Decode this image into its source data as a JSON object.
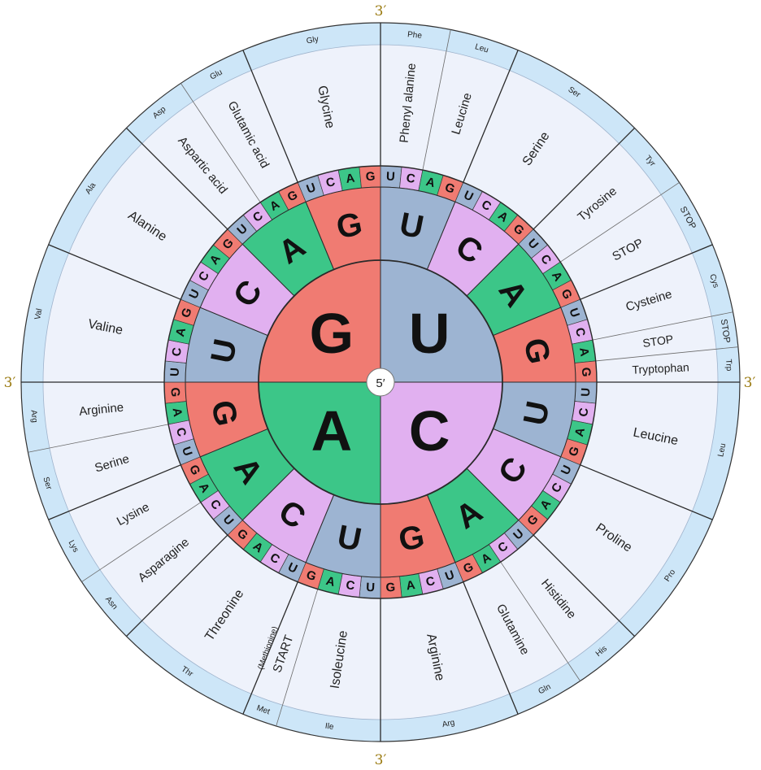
{
  "center_label": "5′",
  "end_labels": [
    "3′",
    "3′",
    "3′",
    "3′"
  ],
  "colors": {
    "U": "#9db4d2",
    "C": "#e1b0f0",
    "A": "#3cc688",
    "G": "#f07b72",
    "outer_band": "#cde6f8",
    "name_region": "#eef2fb",
    "stop_text": "#12988e",
    "start_text": "#b0307a"
  },
  "first_base": [
    "U",
    "C",
    "A",
    "G"
  ],
  "second_base": [
    "U",
    "C",
    "A",
    "G",
    "U",
    "C",
    "A",
    "G",
    "U",
    "C",
    "A",
    "G",
    "U",
    "C",
    "A",
    "G"
  ],
  "third_base": [
    "U",
    "C",
    "A",
    "G",
    "U",
    "C",
    "A",
    "G",
    "U",
    "C",
    "A",
    "G",
    "U",
    "C",
    "A",
    "G",
    "U",
    "C",
    "A",
    "G",
    "U",
    "C",
    "A",
    "G",
    "U",
    "C",
    "A",
    "G",
    "U",
    "C",
    "A",
    "G",
    "U",
    "C",
    "A",
    "G",
    "U",
    "C",
    "A",
    "G",
    "U",
    "C",
    "A",
    "G",
    "U",
    "C",
    "A",
    "G",
    "U",
    "C",
    "A",
    "G",
    "U",
    "C",
    "A",
    "G",
    "U",
    "C",
    "A",
    "G",
    "U",
    "C",
    "A",
    "G"
  ],
  "amino_acids": [
    {
      "name": "Phenyl alanine",
      "abbr": "Phe"
    },
    {
      "name": "Leucine",
      "abbr": "Leu"
    },
    {
      "name": "Serine",
      "abbr": "Ser"
    },
    {
      "name": "Tyrosine",
      "abbr": "Tyr"
    },
    {
      "name": "STOP",
      "abbr": "STOP"
    },
    {
      "name": "Cysteine",
      "abbr": "Cys"
    },
    {
      "name": "STOP",
      "abbr": "STOP"
    },
    {
      "name": "Tryptophan",
      "abbr": "Trp"
    },
    {
      "name": "Leucine",
      "abbr": "Leu"
    },
    {
      "name": "Proline",
      "abbr": "Pro"
    },
    {
      "name": "Histidine",
      "abbr": "His"
    },
    {
      "name": "Glutamine",
      "abbr": "Gln"
    },
    {
      "name": "Arginine",
      "abbr": "Arg"
    },
    {
      "name": "Isoleucine",
      "abbr": "Ile"
    },
    {
      "name": "START",
      "sub": "(Methionine)",
      "abbr": "Met"
    },
    {
      "name": "Threonine",
      "abbr": "Thr"
    },
    {
      "name": "Asparagine",
      "abbr": "Asn"
    },
    {
      "name": "Lysine",
      "abbr": "Lys"
    },
    {
      "name": "Serine",
      "abbr": "Ser"
    },
    {
      "name": "Arginine",
      "abbr": "Arg"
    },
    {
      "name": "Valine",
      "abbr": "Val"
    },
    {
      "name": "Alanine",
      "abbr": "Ala"
    },
    {
      "name": "Aspartic acid",
      "abbr": "Asp"
    },
    {
      "name": "Glutamic acid",
      "abbr": "Glu"
    },
    {
      "name": "Glycine",
      "abbr": "Gly"
    }
  ]
}
